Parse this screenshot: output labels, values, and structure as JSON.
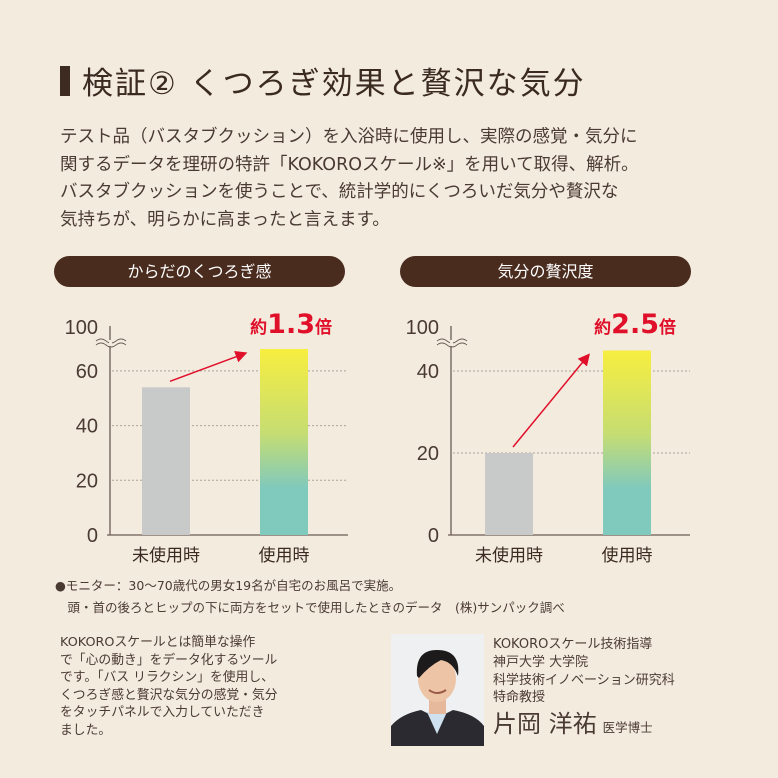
{
  "title": "検証② くつろぎ効果と贅沢な気分",
  "intro_lines": [
    "テスト品（バスタブクッション）を入浴時に使用し、実際の感覚・気分に",
    "関するデータを理研の特許「KOKOROスケール※」を用いて取得、解析。",
    "バスタブクッションを使うことで、統計学的にくつろいだ気分や贅沢な",
    "気持ちが、明らかに高まったと言えます。"
  ],
  "colors": {
    "accent": "#e0102a",
    "brand_dark": "#4a2c1f",
    "bar_unused": "#c8c9c9",
    "bar_used_top": "#f7ee3f",
    "bar_used_bottom": "#80c9bd",
    "background": "#f4ebdf"
  },
  "chart_data": [
    {
      "type": "bar",
      "title": "からだのくつろぎ感",
      "categories": [
        "未使用時",
        "使用時"
      ],
      "values": [
        54,
        68
      ],
      "yticks": [
        "0",
        "20",
        "40",
        "60",
        "100"
      ],
      "ylim": [
        0,
        100
      ],
      "axis_break": "60-100",
      "grid": true,
      "annotation": {
        "prefix": "約",
        "value": "1.3",
        "suffix": "倍"
      }
    },
    {
      "type": "bar",
      "title": "気分の贅沢度",
      "categories": [
        "未使用時",
        "使用時"
      ],
      "values": [
        20,
        45
      ],
      "yticks": [
        "0",
        "20",
        "40",
        "100"
      ],
      "ylim": [
        0,
        100
      ],
      "axis_break": "40-100",
      "grid": true,
      "annotation": {
        "prefix": "約",
        "value": "2.5",
        "suffix": "倍"
      }
    }
  ],
  "notes": [
    "●モニター：30〜70歳代の男女19名が自宅のお風呂で実施。",
    "　頭・首の後ろとヒップの下に両方をセットで使用したときのデータ　(株)サンパック調べ"
  ],
  "description_lines": [
    "KOKOROスケールとは簡単な操作",
    "で「心の動き」をデータ化するツール",
    "です。「バス リラクシン」を使用し、",
    "くつろぎ感と贅沢な気分の感覚・気分",
    "をタッチパネルで入力していただき",
    "ました。"
  ],
  "professor": {
    "lines": [
      "KOKOROスケール技術指導",
      "神戸大学 大学院",
      "科学技術イノベーション研究科",
      "特命教授"
    ],
    "name": "片岡 洋祐",
    "degree": "医学博士"
  }
}
